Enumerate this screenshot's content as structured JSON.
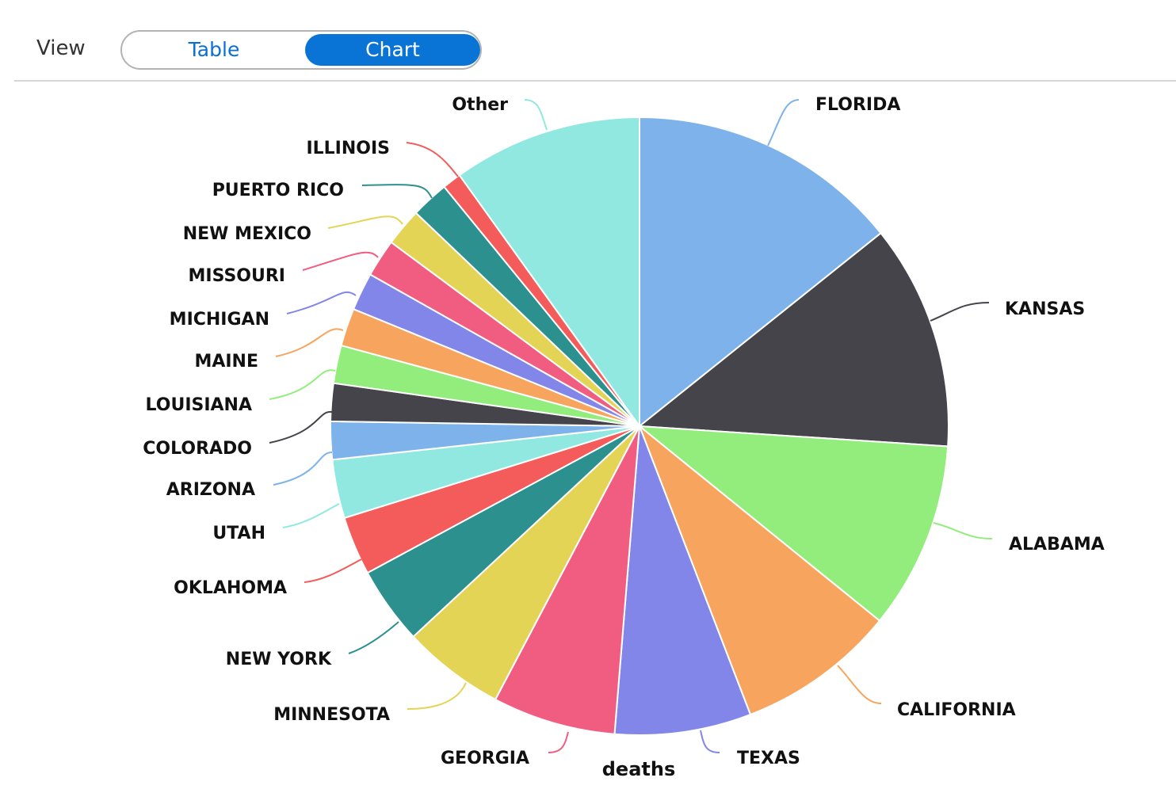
{
  "toolbar": {
    "view_label": "View",
    "toggle": {
      "options": [
        "Table",
        "Chart"
      ],
      "selected": "Chart"
    }
  },
  "colors": {
    "accent": "#0a74d6",
    "accent_text": "#0a6fd3"
  },
  "chart_data": {
    "type": "pie",
    "measure": "deaths",
    "start": "top, clockwise",
    "slices": [
      {
        "label": "FLORIDA",
        "value": 14.4,
        "color": "#7db3ea"
      },
      {
        "label": "KANSAS",
        "value": 11.9,
        "color": "#45444a"
      },
      {
        "label": "ALABAMA",
        "value": 9.9,
        "color": "#92ed7d"
      },
      {
        "label": "CALIFORNIA",
        "value": 8.4,
        "color": "#f7a55e"
      },
      {
        "label": "TEXAS",
        "value": 7.2,
        "color": "#8286e9"
      },
      {
        "label": "GEORGIA",
        "value": 6.5,
        "color": "#f15c81"
      },
      {
        "label": "MINNESOTA",
        "value": 5.4,
        "color": "#e4d456"
      },
      {
        "label": "NEW YORK",
        "value": 4.1,
        "color": "#2c908e"
      },
      {
        "label": "OKLAHOMA",
        "value": 3.1,
        "color": "#f45b5b"
      },
      {
        "label": "UTAH",
        "value": 3.1,
        "color": "#91e8e1"
      },
      {
        "label": "ARIZONA",
        "value": 2.0,
        "color": "#7db3ea"
      },
      {
        "label": "COLORADO",
        "value": 2.0,
        "color": "#45444a"
      },
      {
        "label": "LOUISIANA",
        "value": 2.0,
        "color": "#92ed7d"
      },
      {
        "label": "MAINE",
        "value": 2.0,
        "color": "#f7a55e"
      },
      {
        "label": "MICHIGAN",
        "value": 2.0,
        "color": "#8286e9"
      },
      {
        "label": "MISSOURI",
        "value": 2.0,
        "color": "#f15c81"
      },
      {
        "label": "NEW MEXICO",
        "value": 2.0,
        "color": "#e4d456"
      },
      {
        "label": "PUERTO RICO",
        "value": 2.0,
        "color": "#2c908e"
      },
      {
        "label": "ILLINOIS",
        "value": 1.0,
        "color": "#f45b5b"
      },
      {
        "label": "Other",
        "value": 10.0,
        "color": "#91e8e1"
      }
    ]
  }
}
